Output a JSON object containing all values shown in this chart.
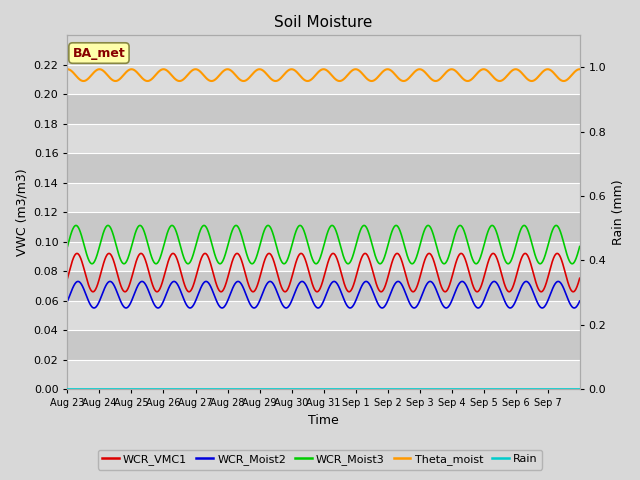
{
  "title": "Soil Moisture",
  "xlabel": "Time",
  "ylabel_left": "VWC (m3/m3)",
  "ylabel_right": "Rain (mm)",
  "ylim_left": [
    0.0,
    0.24
  ],
  "ylim_right": [
    0.0,
    1.1
  ],
  "yticks_left": [
    0.0,
    0.02,
    0.04,
    0.06,
    0.08,
    0.1,
    0.12,
    0.14,
    0.16,
    0.18,
    0.2,
    0.22
  ],
  "yticks_right_vals": [
    0.0,
    0.2,
    0.4,
    0.6,
    0.8,
    1.0
  ],
  "background_color": "#d8d8d8",
  "plot_bg_light": "#dcdcdc",
  "plot_bg_dark": "#c8c8c8",
  "grid_color": "#ffffff",
  "colors": {
    "WCR_VMC1": "#dd0000",
    "WCR_Moist2": "#0000dd",
    "WCR_Moist3": "#00cc00",
    "Theta_moist": "#ff9900",
    "Rain": "#00cccc"
  },
  "annotation_text": "BA_met",
  "annotation_color": "#880000",
  "annotation_bg": "#ffffaa",
  "annotation_border": "#888844",
  "n_days": 16,
  "n_pts": 2000,
  "theta_base": 0.213,
  "theta_amp": 0.004,
  "wcr_vmc1_base": 0.079,
  "wcr_vmc1_amp": 0.013,
  "wcr_moist2_base": 0.064,
  "wcr_moist2_amp": 0.009,
  "wcr_moist3_base": 0.098,
  "wcr_moist3_amp": 0.013,
  "rain_value": 0.0,
  "day_labels": [
    "Aug 23",
    "Aug 24",
    "Aug 25",
    "Aug 26",
    "Aug 27",
    "Aug 28",
    "Aug 29",
    "Aug 30",
    "Aug 31",
    "Sep 1",
    "Sep 2",
    "Sep 3",
    "Sep 4",
    "Sep 5",
    "Sep 6",
    "Sep 7"
  ],
  "legend_entries": [
    "WCR_VMC1",
    "WCR_Moist2",
    "WCR_Moist3",
    "Theta_moist",
    "Rain"
  ]
}
